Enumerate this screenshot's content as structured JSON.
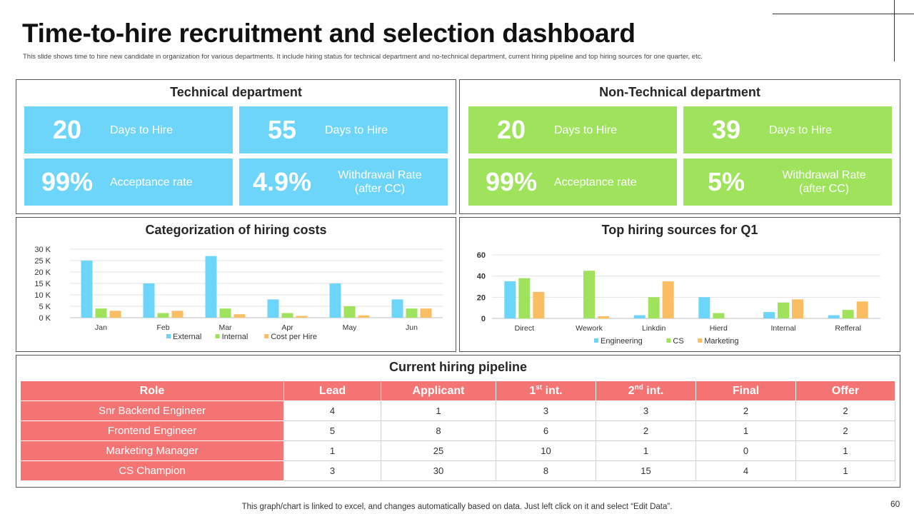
{
  "title": "Time-to-hire recruitment and selection dashboard",
  "subtitle": "This slide shows time to hire new candidate in organization for various departments. It include hiring status for technical department and no-technical department, current hiring pipeline and top hiring sources for one quarter, etc.",
  "technical": {
    "title": "Technical department",
    "kpis": [
      {
        "value": "20",
        "label": "Days to Hire"
      },
      {
        "value": "55",
        "label": "Days to Hire"
      },
      {
        "value": "99%",
        "label": "Acceptance rate"
      },
      {
        "value": "4.9%",
        "label_line1": "Withdrawal Rate",
        "label_line2": "(after CC)"
      }
    ]
  },
  "non_technical": {
    "title": "Non-Technical department",
    "kpis": [
      {
        "value": "20",
        "label": "Days to Hire"
      },
      {
        "value": "39",
        "label": "Days to Hire"
      },
      {
        "value": "99%",
        "label": "Acceptance rate"
      },
      {
        "value": "5%",
        "label_line1": "Withdrawal Rate",
        "label_line2": "(after CC)"
      }
    ]
  },
  "colors": {
    "blue": "#6dd5fa",
    "green": "#9ee35b",
    "orange": "#f9bd62",
    "red": "#f47373"
  },
  "chart_data": [
    {
      "type": "bar",
      "title": "Categorization of hiring costs",
      "categories": [
        "Jan",
        "Feb",
        "Mar",
        "Apr",
        "May",
        "Jun"
      ],
      "series": [
        {
          "name": "External",
          "values": [
            25000,
            15000,
            27000,
            8000,
            15000,
            8000
          ]
        },
        {
          "name": "Internal",
          "values": [
            4000,
            2000,
            4000,
            2000,
            5000,
            4000
          ]
        },
        {
          "name": "Cost per Hire",
          "values": [
            3000,
            3000,
            1500,
            800,
            1000,
            4000
          ]
        }
      ],
      "yticks": [
        "0 K",
        "5 K",
        "10 K",
        "15 K",
        "20 K",
        "25 K",
        "30 K"
      ],
      "ylim": [
        0,
        30000
      ],
      "grid": true,
      "legend": "bottom"
    },
    {
      "type": "bar",
      "title": "Top hiring sources for Q1",
      "categories": [
        "Direct",
        "Wework",
        "Linkdin",
        "Hierd",
        "Internal",
        "Refferal"
      ],
      "series": [
        {
          "name": "Engineering",
          "values": [
            35,
            0,
            3,
            20,
            6,
            3
          ]
        },
        {
          "name": "CS",
          "values": [
            38,
            45,
            20,
            5,
            15,
            8
          ]
        },
        {
          "name": "Marketing",
          "values": [
            25,
            2,
            35,
            0,
            18,
            16
          ]
        }
      ],
      "yticks": [
        "0",
        "20",
        "40",
        "60"
      ],
      "ylim": [
        0,
        60
      ],
      "grid": true,
      "legend": "bottom"
    }
  ],
  "pipeline": {
    "title": "Current hiring pipeline",
    "headers": {
      "role": "Role",
      "lead": "Lead",
      "applicant": "Applicant",
      "first_base": "1",
      "first_sup": "st",
      "first_suffix": " int.",
      "second_base": "2",
      "second_sup": "nd",
      "second_suffix": " int.",
      "final": "Final",
      "offer": "Offer"
    },
    "rows": [
      {
        "role": "Snr Backend Engineer",
        "lead": "4",
        "applicant": "1",
        "first": "3",
        "second": "3",
        "final": "2",
        "offer": "2"
      },
      {
        "role": "Frontend Engineer",
        "lead": "5",
        "applicant": "8",
        "first": "6",
        "second": "2",
        "final": "1",
        "offer": "2"
      },
      {
        "role": "Marketing Manager",
        "lead": "1",
        "applicant": "25",
        "first": "10",
        "second": "1",
        "final": "0",
        "offer": "1"
      },
      {
        "role": "CS Champion",
        "lead": "3",
        "applicant": "30",
        "first": "8",
        "second": "15",
        "final": "4",
        "offer": "1"
      }
    ]
  },
  "footer": "This graph/chart is linked to excel, and changes automatically based on data. Just left click on it and select “Edit Data”.",
  "page_number": "60"
}
